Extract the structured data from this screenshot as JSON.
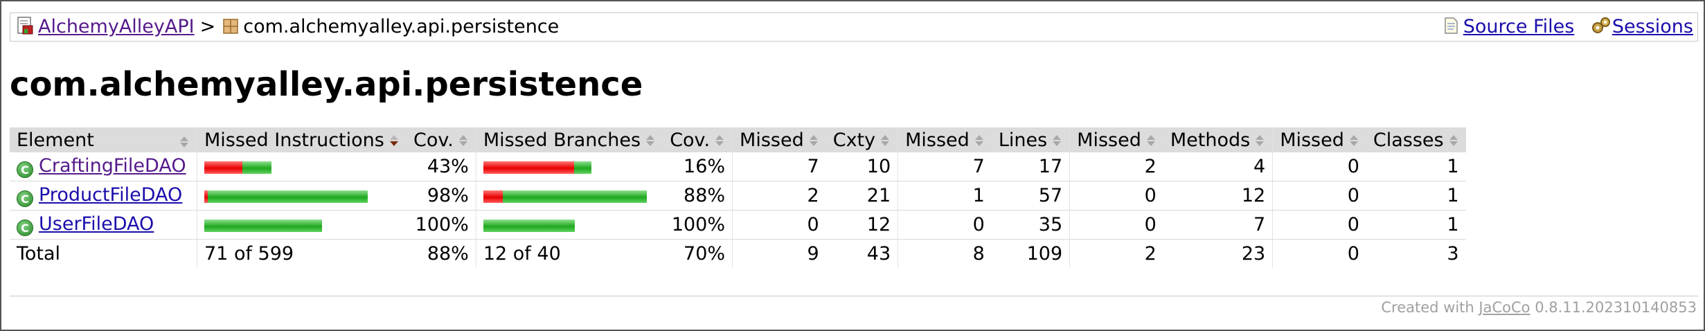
{
  "breadcrumb": {
    "project_label": "AlchemyAlleyAPI",
    "separator": ">",
    "package_label": "com.alchemyalley.api.persistence",
    "source_files_label": "Source Files",
    "sessions_label": "Sessions"
  },
  "page_title": "com.alchemyalley.api.persistence",
  "table": {
    "headers": {
      "element": "Element",
      "missed_instructions": "Missed Instructions",
      "cov_instructions": "Cov.",
      "missed_branches": "Missed Branches",
      "cov_branches": "Cov.",
      "missed_cxty": "Missed",
      "cxty": "Cxty",
      "missed_lines": "Missed",
      "lines": "Lines",
      "missed_methods": "Missed",
      "methods": "Methods",
      "missed_classes": "Missed",
      "classes": "Classes"
    },
    "rows": [
      {
        "name": "CraftingFileDAO",
        "instr_missed_fraction": 0.57,
        "instr_total_scale": 0.41,
        "instr_cov": "43%",
        "branch_missed_fraction": 0.84,
        "branch_total_scale": 0.66,
        "branch_cov": "16%",
        "missed_cxty": "7",
        "cxty": "10",
        "missed_lines": "7",
        "lines": "17",
        "missed_methods": "2",
        "methods": "4",
        "missed_classes": "0",
        "classes": "1"
      },
      {
        "name": "ProductFileDAO",
        "instr_missed_fraction": 0.02,
        "instr_total_scale": 1.0,
        "instr_cov": "98%",
        "branch_missed_fraction": 0.12,
        "branch_total_scale": 1.0,
        "branch_cov": "88%",
        "missed_cxty": "2",
        "cxty": "21",
        "missed_lines": "1",
        "lines": "57",
        "missed_methods": "0",
        "methods": "12",
        "missed_classes": "0",
        "classes": "1"
      },
      {
        "name": "UserFileDAO",
        "instr_missed_fraction": 0.0,
        "instr_total_scale": 0.72,
        "instr_cov": "100%",
        "branch_missed_fraction": 0.0,
        "branch_total_scale": 0.56,
        "branch_cov": "100%",
        "missed_cxty": "0",
        "cxty": "12",
        "missed_lines": "0",
        "lines": "35",
        "missed_methods": "0",
        "methods": "7",
        "missed_classes": "0",
        "classes": "1"
      }
    ],
    "total": {
      "label": "Total",
      "instr": "71 of 599",
      "instr_cov": "88%",
      "branch": "12 of 40",
      "branch_cov": "70%",
      "missed_cxty": "9",
      "cxty": "43",
      "missed_lines": "8",
      "lines": "109",
      "missed_methods": "2",
      "methods": "23",
      "missed_classes": "0",
      "classes": "3"
    }
  },
  "footer": {
    "prefix": "Created with",
    "tool": "JaCoCo",
    "version": "0.8.11.202310140853"
  },
  "icons": {
    "project": "report-icon",
    "package": "package-icon",
    "source_files": "source-file-icon",
    "sessions": "sessions-gear-icon",
    "class": "class-icon"
  }
}
